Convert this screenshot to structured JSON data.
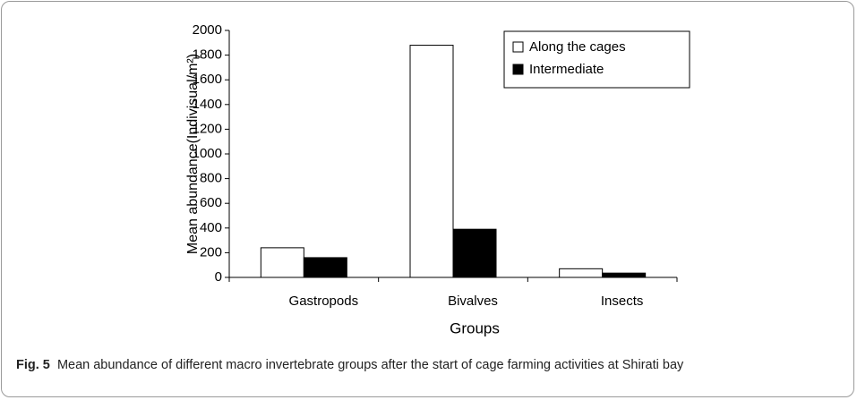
{
  "chart_data": {
    "type": "bar",
    "y_label": "Mean abundance(Indivisual/m²)",
    "x_label": "Groups",
    "categories": [
      "Gastropods",
      "Bivalves",
      "Insects"
    ],
    "series": [
      {
        "name": "Along the cages",
        "color": "#ffffff",
        "values": [
          240,
          1880,
          70
        ]
      },
      {
        "name": "Intermediate",
        "color": "#000000",
        "values": [
          160,
          390,
          35
        ]
      }
    ],
    "ylim": [
      0,
      2000
    ],
    "yticks": [
      0,
      200,
      400,
      600,
      800,
      1000,
      1200,
      1400,
      1600,
      1800,
      2000
    ],
    "grid": false,
    "legend": "top-right"
  },
  "caption": {
    "label": "Fig. 5",
    "text": "Mean abundance of different macro invertebrate groups after the start of cage farming activities at Shirati bay"
  }
}
